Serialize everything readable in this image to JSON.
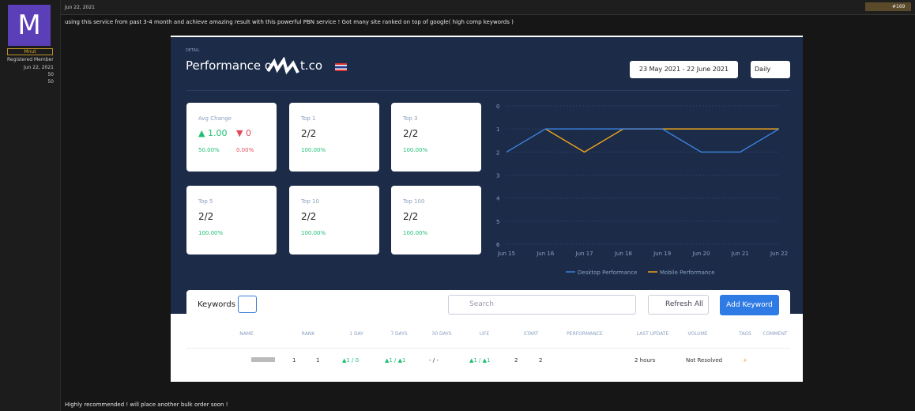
{
  "post": {
    "date": "Jun 22, 2021",
    "number": "#169",
    "text": "using this service from past 3-4 month and achieve amazing result with this powerful PBN service ! Got many site ranked on top of google( high comp keywords )",
    "footer_text": "Highly recommended ! will place another bulk order soon !"
  },
  "user": {
    "avatar_letter": "M",
    "name": "Mnut",
    "role": "Registered Member",
    "joined": "Jun 22, 2021",
    "messages": "50",
    "reactions": "50"
  },
  "screenshot": {
    "detail_label": "DETAIL",
    "title_prefix": "Performance o",
    "title_suffix": "t.co",
    "date_range": "23 May 2021 - 22 June 2021",
    "interval": "Daily",
    "avg_card": {
      "label": "Avg Change",
      "up": "▲ 1.00",
      "down": "▼ 0",
      "up_pct": "50.00%",
      "down_pct": "0.00%"
    },
    "cards": [
      {
        "label": "Top 1",
        "value": "2/2",
        "pct": "100.00%"
      },
      {
        "label": "Top 3",
        "value": "2/2",
        "pct": "100.00%"
      },
      {
        "label": "Top 5",
        "value": "2/2",
        "pct": "100.00%"
      },
      {
        "label": "Top 10",
        "value": "2/2",
        "pct": "100.00%"
      },
      {
        "label": "Top 100",
        "value": "2/2",
        "pct": "100.00%"
      }
    ],
    "toolbar": {
      "keywords": "Keywords",
      "search": "Search",
      "refresh": "Refresh All",
      "add": "Add Keyword"
    },
    "table": {
      "headers": [
        "NAME",
        "RANK",
        "1 DAY",
        "7 DAYS",
        "30 DAYS",
        "LIFE",
        "START",
        "PERFORMANCE",
        "LAST UPDATE",
        "VOLUME",
        "TAGS",
        "COMMENT"
      ],
      "row": [
        "1",
        "1",
        "▲1 / 0",
        "▲1 / ▲1",
        "- / -",
        "▲1 / ▲1",
        "2",
        "2",
        "2 hours",
        "Not Resolved",
        "+"
      ]
    }
  },
  "chart_data": {
    "type": "line",
    "categories": [
      "Jun 15",
      "Jun 16",
      "Jun 17",
      "Jun 18",
      "Jun 19",
      "Jun 20",
      "Jun 21",
      "Jun 22"
    ],
    "series": [
      {
        "name": "Desktop Performance",
        "color": "#3b7dd8",
        "values": [
          2,
          1,
          1,
          1,
          1,
          2,
          2,
          1
        ]
      },
      {
        "name": "Mobile Performance",
        "color": "#e8a21c",
        "values": [
          null,
          1,
          2,
          1,
          1,
          1,
          1,
          1
        ]
      }
    ],
    "ylim": [
      6,
      0
    ],
    "yticks": [
      0,
      1,
      2,
      3,
      4,
      5,
      6
    ],
    "grid": true,
    "legend": "bottom"
  }
}
